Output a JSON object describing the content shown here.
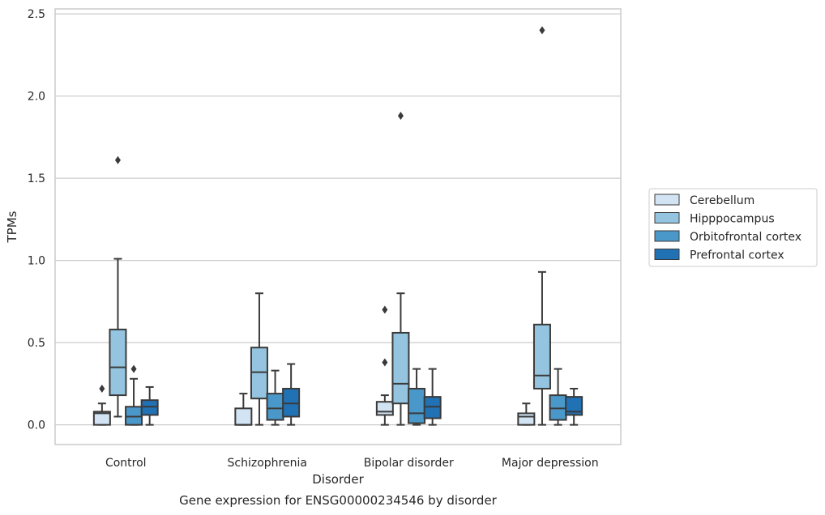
{
  "chart_data": {
    "type": "box",
    "title": "",
    "caption": "Gene expression for ENSG00000234546 by disorder",
    "xlabel": "Disorder",
    "ylabel": "TPMs",
    "ylim": [
      -0.12,
      2.53
    ],
    "yticks": [
      0.0,
      0.5,
      1.0,
      1.5,
      2.0,
      2.5
    ],
    "ytick_labels": [
      "0.0",
      "0.5",
      "1.0",
      "1.5",
      "2.0",
      "2.5"
    ],
    "grid": "horizontal",
    "legend_position": "right",
    "categories": [
      "Control",
      "Schizophrenia",
      "Bipolar disorder",
      "Major depression"
    ],
    "series": [
      {
        "name": "Cerebellum",
        "color": "#d2e3f3",
        "boxes": [
          {
            "min": 0.0,
            "q1": 0.0,
            "median": 0.07,
            "q3": 0.08,
            "max": 0.13,
            "outliers": [
              0.22
            ]
          },
          {
            "min": 0.0,
            "q1": 0.0,
            "median": 0.0,
            "q3": 0.1,
            "max": 0.19,
            "outliers": []
          },
          {
            "min": 0.0,
            "q1": 0.06,
            "median": 0.08,
            "q3": 0.14,
            "max": 0.18,
            "outliers": [
              0.38,
              0.7
            ]
          },
          {
            "min": 0.0,
            "q1": 0.0,
            "median": 0.05,
            "q3": 0.07,
            "max": 0.13,
            "outliers": []
          }
        ]
      },
      {
        "name": "Hipppocampus",
        "color": "#94c4df",
        "boxes": [
          {
            "min": 0.05,
            "q1": 0.18,
            "median": 0.35,
            "q3": 0.58,
            "max": 1.01,
            "outliers": [
              1.61
            ]
          },
          {
            "min": 0.0,
            "q1": 0.16,
            "median": 0.32,
            "q3": 0.47,
            "max": 0.8,
            "outliers": []
          },
          {
            "min": 0.0,
            "q1": 0.13,
            "median": 0.25,
            "q3": 0.56,
            "max": 0.8,
            "outliers": [
              1.88
            ]
          },
          {
            "min": 0.0,
            "q1": 0.22,
            "median": 0.3,
            "q3": 0.61,
            "max": 0.93,
            "outliers": [
              2.4
            ]
          }
        ]
      },
      {
        "name": "Orbitofrontal cortex",
        "color": "#4a98c9",
        "boxes": [
          {
            "min": 0.0,
            "q1": 0.0,
            "median": 0.05,
            "q3": 0.11,
            "max": 0.28,
            "outliers": [
              0.34
            ]
          },
          {
            "min": 0.0,
            "q1": 0.03,
            "median": 0.1,
            "q3": 0.19,
            "max": 0.33,
            "outliers": []
          },
          {
            "min": 0.0,
            "q1": 0.01,
            "median": 0.07,
            "q3": 0.22,
            "max": 0.34,
            "outliers": []
          },
          {
            "min": 0.0,
            "q1": 0.03,
            "median": 0.1,
            "q3": 0.18,
            "max": 0.34,
            "outliers": []
          }
        ]
      },
      {
        "name": "Prefrontal cortex",
        "color": "#2171b5",
        "boxes": [
          {
            "min": 0.0,
            "q1": 0.06,
            "median": 0.11,
            "q3": 0.15,
            "max": 0.23,
            "outliers": []
          },
          {
            "min": 0.0,
            "q1": 0.05,
            "median": 0.13,
            "q3": 0.22,
            "max": 0.37,
            "outliers": []
          },
          {
            "min": 0.0,
            "q1": 0.04,
            "median": 0.11,
            "q3": 0.17,
            "max": 0.34,
            "outliers": []
          },
          {
            "min": 0.0,
            "q1": 0.06,
            "median": 0.08,
            "q3": 0.17,
            "max": 0.22,
            "outliers": []
          }
        ]
      }
    ]
  }
}
